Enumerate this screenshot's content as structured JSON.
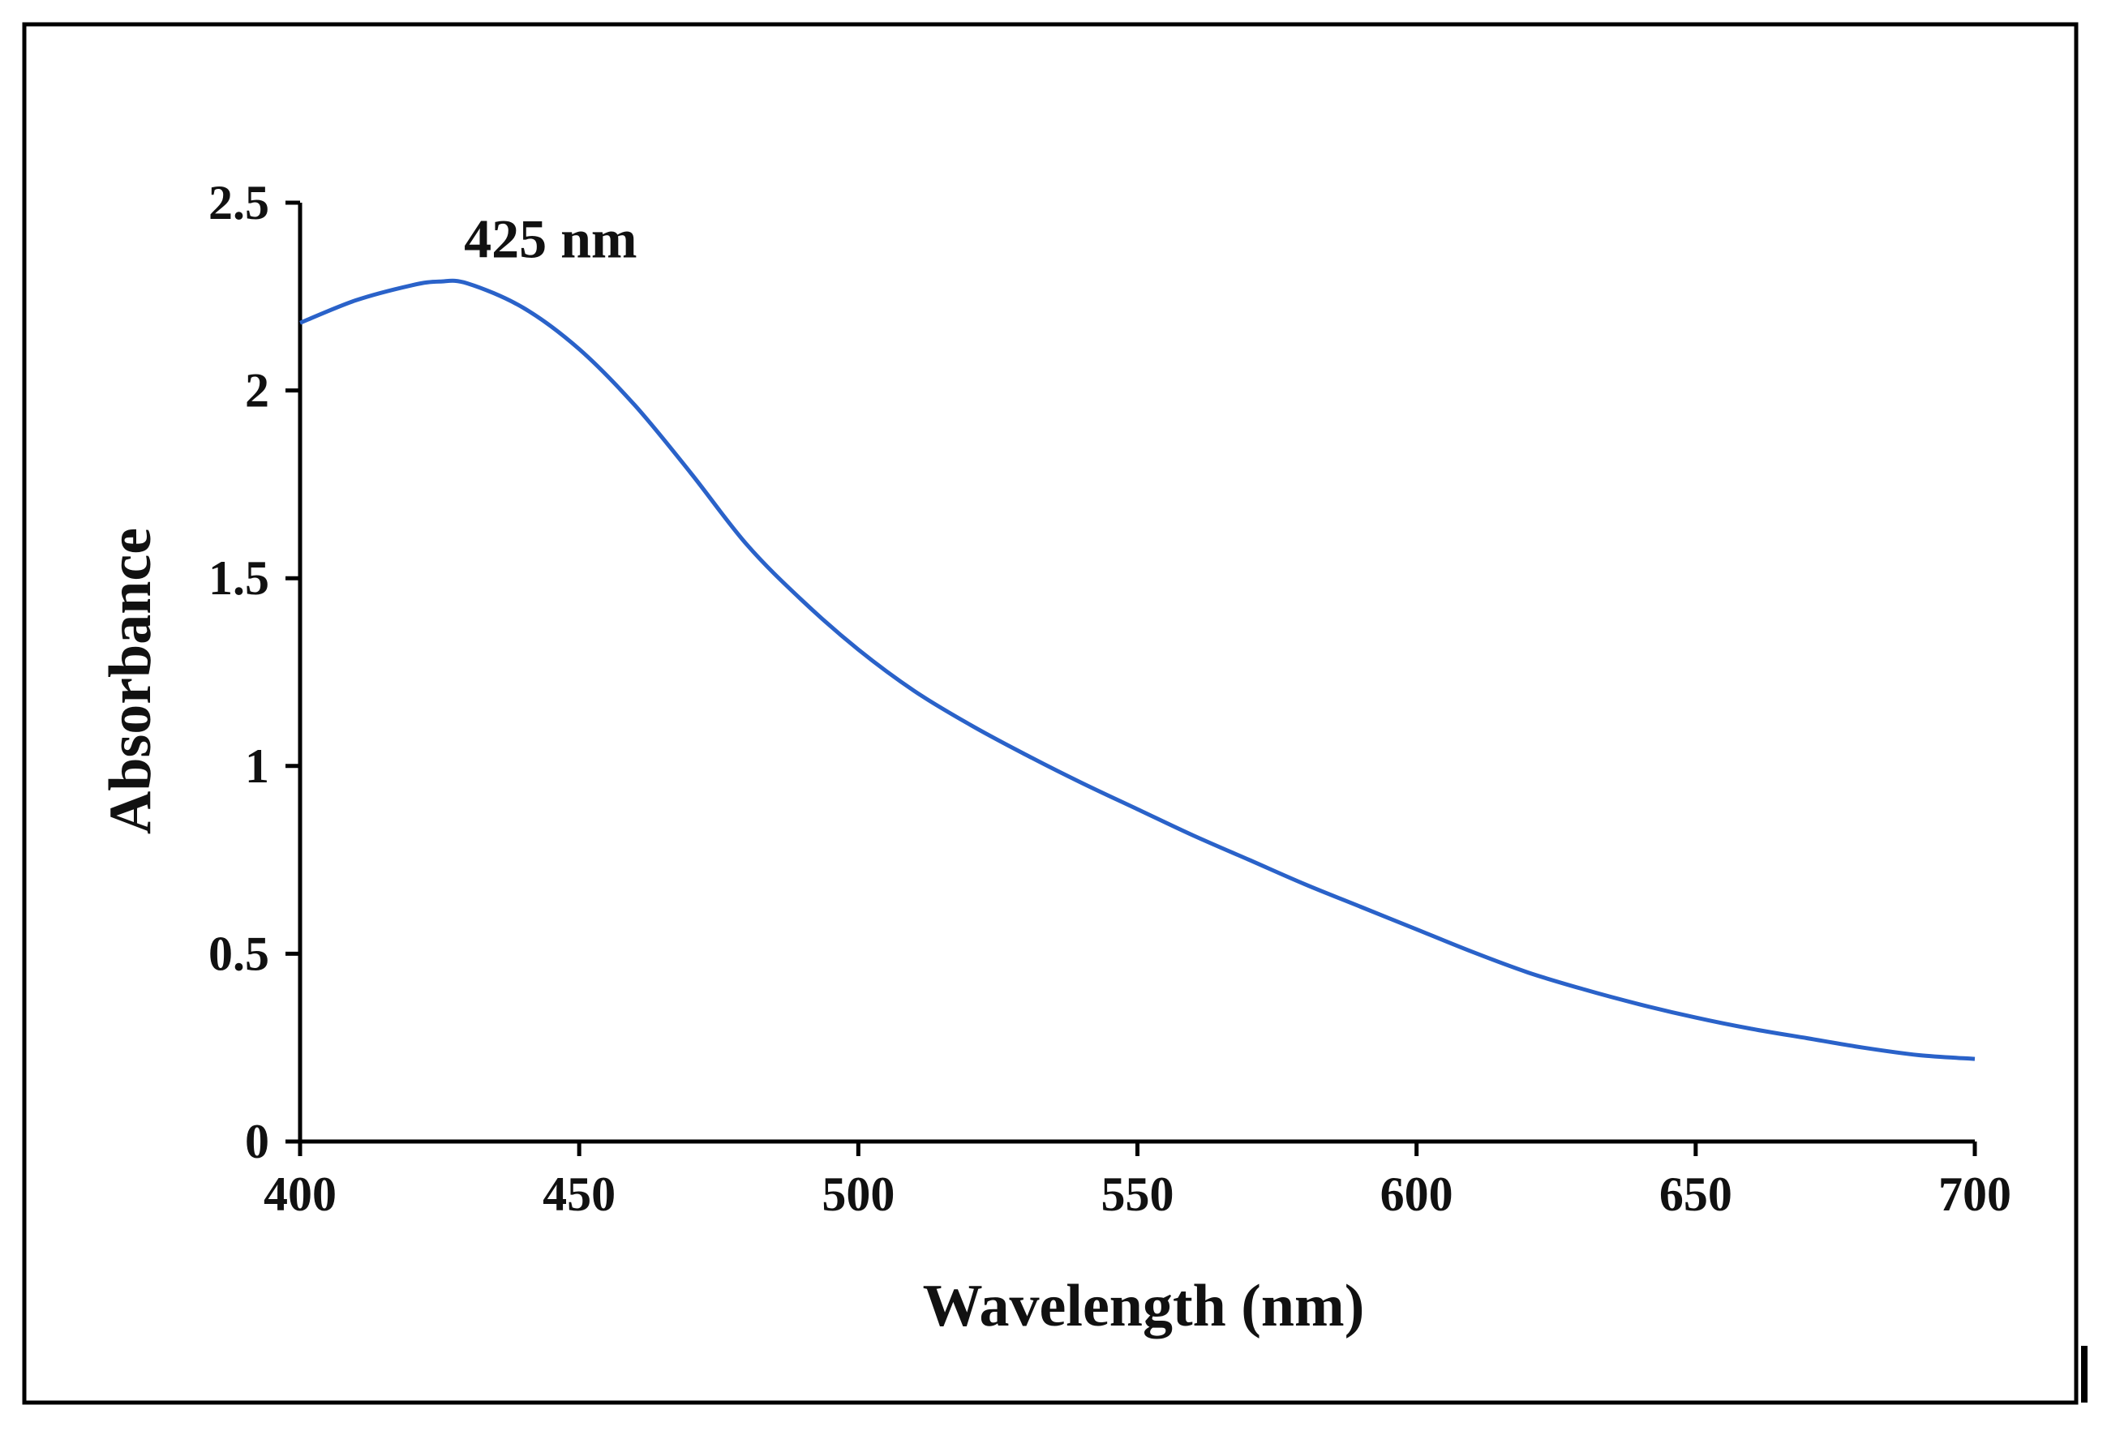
{
  "chart_data": {
    "type": "line",
    "title": "",
    "xlabel": "Wavelength (nm)",
    "ylabel": "Absorbance",
    "xlim": [
      400,
      700
    ],
    "ylim": [
      0,
      2.5
    ],
    "x_ticks": [
      400,
      450,
      500,
      550,
      600,
      650,
      700
    ],
    "y_ticks": [
      0,
      0.5,
      1,
      1.5,
      2,
      2.5
    ],
    "x_tick_labels": [
      "400",
      "450",
      "500",
      "550",
      "600",
      "650",
      "700"
    ],
    "y_tick_labels": [
      "0",
      "0.5",
      "1",
      "1.5",
      "2",
      "2.5"
    ],
    "grid": false,
    "legend": "none",
    "series": [
      {
        "name": "Absorbance",
        "color": "#2a62c9",
        "x": [
          400,
          410,
          420,
          425,
          430,
          440,
          450,
          460,
          470,
          480,
          490,
          500,
          510,
          520,
          530,
          540,
          550,
          560,
          570,
          580,
          590,
          600,
          610,
          620,
          630,
          640,
          650,
          660,
          670,
          680,
          690,
          700
        ],
        "y": [
          2.18,
          2.24,
          2.28,
          2.29,
          2.285,
          2.22,
          2.11,
          1.96,
          1.78,
          1.59,
          1.44,
          1.31,
          1.2,
          1.11,
          1.03,
          0.955,
          0.885,
          0.815,
          0.75,
          0.685,
          0.625,
          0.565,
          0.505,
          0.45,
          0.405,
          0.365,
          0.33,
          0.3,
          0.275,
          0.25,
          0.23,
          0.22
        ]
      }
    ],
    "annotations": [
      {
        "text": "425 nm",
        "x": 425,
        "y": 2.29
      }
    ]
  },
  "colors": {
    "frame": "#000000",
    "axis": "#000000",
    "line": "#2a62c9",
    "background": "#ffffff"
  }
}
